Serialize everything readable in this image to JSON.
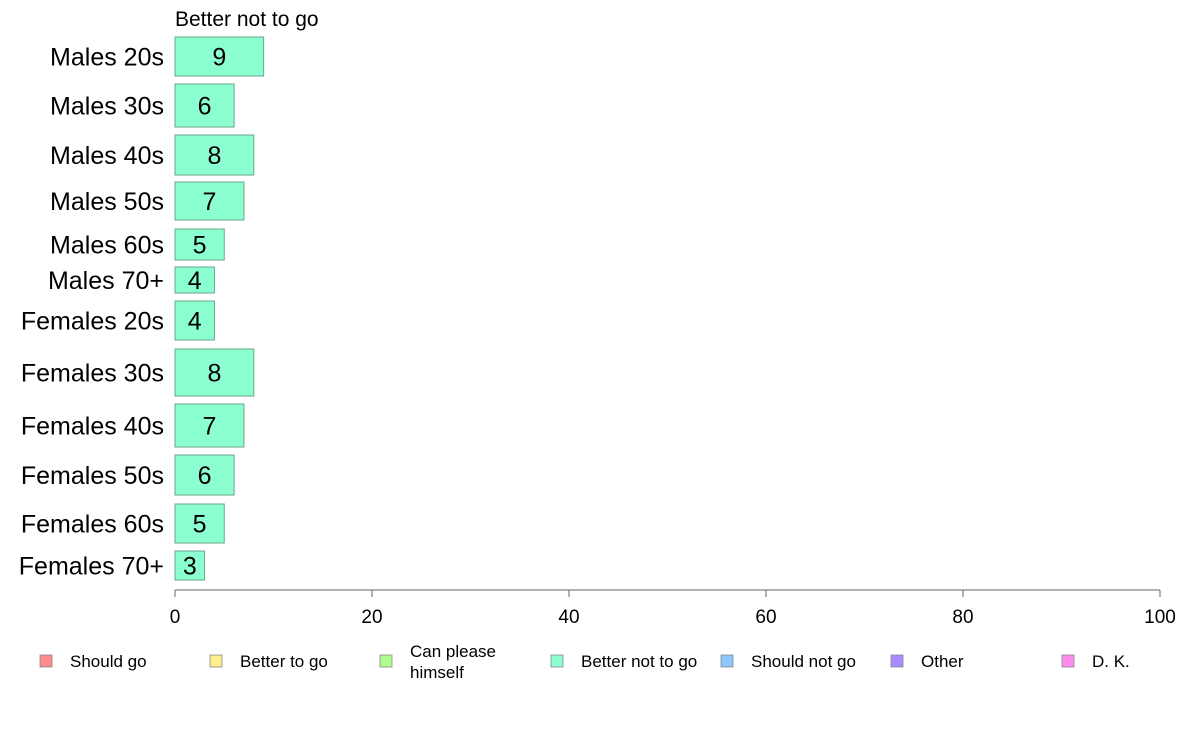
{
  "chart_data": {
    "type": "bar",
    "orientation": "horizontal",
    "title": "Better not to go",
    "categories": [
      "Males 20s",
      "Males 30s",
      "Males 40s",
      "Males 50s",
      "Males 60s",
      "Males 70+",
      "Females 20s",
      "Females 30s",
      "Females 40s",
      "Females 50s",
      "Females 60s",
      "Females 70+"
    ],
    "series": [
      {
        "name": "Better not to go",
        "values": [
          9,
          6,
          8,
          7,
          5,
          4,
          4,
          8,
          7,
          6,
          5,
          3
        ]
      }
    ],
    "xlim": [
      0,
      100
    ],
    "xticks": [
      0,
      20,
      40,
      60,
      80,
      100
    ],
    "grid": false,
    "legend": {
      "position": "bottom",
      "items": [
        {
          "label": "Should go",
          "color": "#ff8c8c"
        },
        {
          "label": "Better to go",
          "color": "#ffee8c"
        },
        {
          "label": "Can please himself",
          "color": "#b0ff8c"
        },
        {
          "label": "Better not to go",
          "color": "#8cffd0"
        },
        {
          "label": "Should not go",
          "color": "#8cc8ff"
        },
        {
          "label": "Other",
          "color": "#a88cff"
        },
        {
          "label": "D. K.",
          "color": "#ff8cee"
        }
      ]
    },
    "bar_color": "#8cffd0",
    "bar_stroke": "#6aa58c"
  }
}
